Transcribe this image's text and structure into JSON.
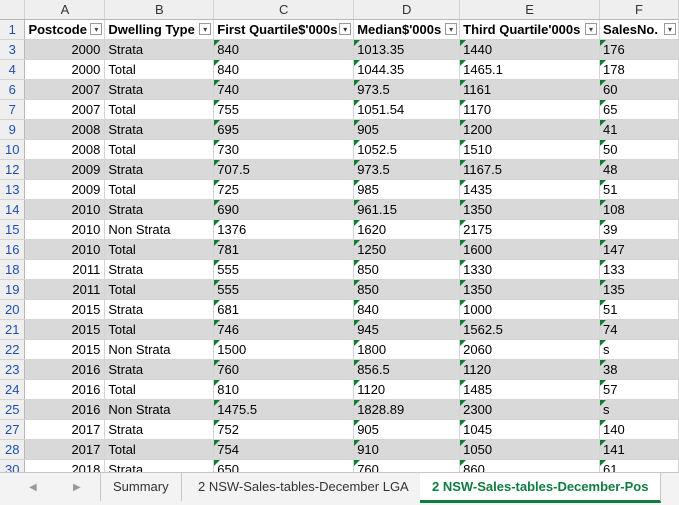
{
  "columns": [
    "A",
    "B",
    "C",
    "D",
    "E",
    "F"
  ],
  "header_row_num": "1",
  "headers": [
    "Postcode",
    "Dwelling Type",
    "First Quartile$'000s",
    "Median$'000s",
    "Third Quartile'000s",
    "SalesNo."
  ],
  "rows": [
    {
      "n": "3",
      "c": [
        "2000",
        "Strata",
        "840",
        "1013.35",
        "1440",
        "176"
      ]
    },
    {
      "n": "4",
      "c": [
        "2000",
        "Total",
        "840",
        "1044.35",
        "1465.1",
        "178"
      ]
    },
    {
      "n": "6",
      "c": [
        "2007",
        "Strata",
        "740",
        "973.5",
        "1161",
        "60"
      ]
    },
    {
      "n": "7",
      "c": [
        "2007",
        "Total",
        "755",
        "1051.54",
        "1170",
        "65"
      ]
    },
    {
      "n": "9",
      "c": [
        "2008",
        "Strata",
        "695",
        "905",
        "1200",
        "41"
      ]
    },
    {
      "n": "10",
      "c": [
        "2008",
        "Total",
        "730",
        "1052.5",
        "1510",
        "50"
      ]
    },
    {
      "n": "12",
      "c": [
        "2009",
        "Strata",
        "707.5",
        "973.5",
        "1167.5",
        "48"
      ]
    },
    {
      "n": "13",
      "c": [
        "2009",
        "Total",
        "725",
        "985",
        "1435",
        "51"
      ]
    },
    {
      "n": "14",
      "c": [
        "2010",
        "Strata",
        "690",
        "961.15",
        "1350",
        "108"
      ]
    },
    {
      "n": "15",
      "c": [
        "2010",
        "Non Strata",
        "1376",
        "1620",
        "2175",
        "39"
      ]
    },
    {
      "n": "16",
      "c": [
        "2010",
        "Total",
        "781",
        "1250",
        "1600",
        "147"
      ]
    },
    {
      "n": "18",
      "c": [
        "2011",
        "Strata",
        "555",
        "850",
        "1330",
        "133"
      ]
    },
    {
      "n": "19",
      "c": [
        "2011",
        "Total",
        "555",
        "850",
        "1350",
        "135"
      ]
    },
    {
      "n": "20",
      "c": [
        "2015",
        "Strata",
        "681",
        "840",
        "1000",
        "51"
      ]
    },
    {
      "n": "21",
      "c": [
        "2015",
        "Total",
        "746",
        "945",
        "1562.5",
        "74"
      ]
    },
    {
      "n": "22",
      "c": [
        "2015",
        "Non Strata",
        "1500",
        "1800",
        "2060",
        "s"
      ]
    },
    {
      "n": "23",
      "c": [
        "2016",
        "Strata",
        "760",
        "856.5",
        "1120",
        "38"
      ]
    },
    {
      "n": "24",
      "c": [
        "2016",
        "Total",
        "810",
        "1120",
        "1485",
        "57"
      ]
    },
    {
      "n": "25",
      "c": [
        "2016",
        "Non Strata",
        "1475.5",
        "1828.89",
        "2300",
        "s"
      ]
    },
    {
      "n": "27",
      "c": [
        "2017",
        "Strata",
        "752",
        "905",
        "1045",
        "140"
      ]
    },
    {
      "n": "28",
      "c": [
        "2017",
        "Total",
        "754",
        "910",
        "1050",
        "141"
      ]
    },
    {
      "n": "30",
      "c": [
        "2018",
        "Strata",
        "650",
        "760",
        "860",
        "61"
      ]
    }
  ],
  "tabs": {
    "sheet1": "Summary",
    "sheet2": "2 NSW-Sales-tables-December LGA",
    "sheet3": "2 NSW-Sales-tables-December-Pos"
  },
  "colors": {
    "tab_active": "#107c41",
    "row_shade": "#d9d9d9",
    "error_flag": "#0f7d2e"
  }
}
